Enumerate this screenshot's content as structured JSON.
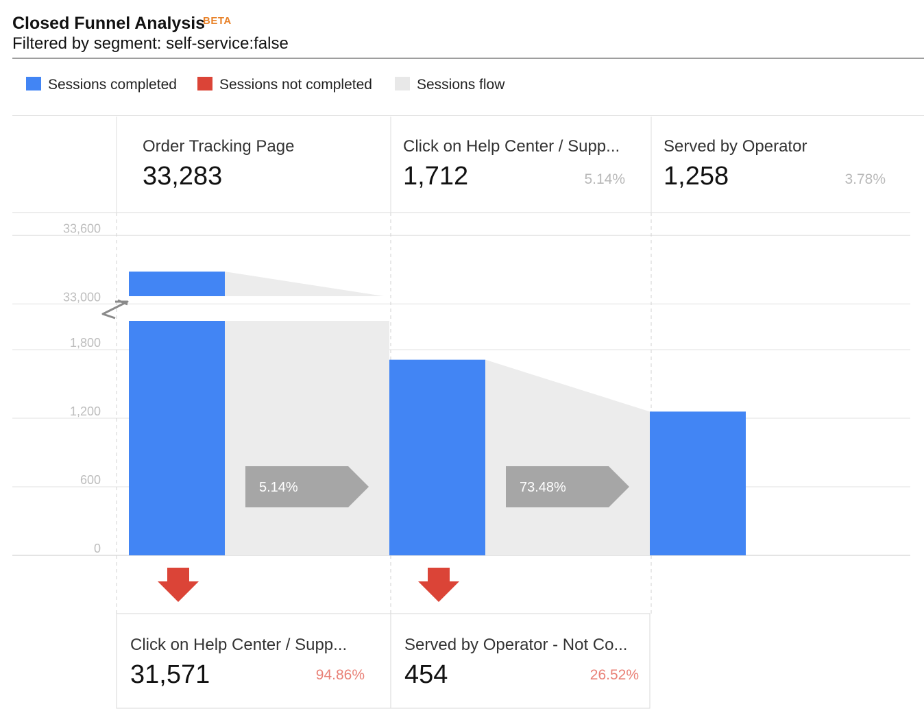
{
  "header": {
    "title": "Closed Funnel Analysis",
    "badge": "BETA",
    "subtitle": "Filtered by segment: self-service:false"
  },
  "legend": [
    {
      "label": "Sessions completed",
      "color": "#4285f4"
    },
    {
      "label": "Sessions not completed",
      "color": "#db4437"
    },
    {
      "label": "Sessions flow",
      "color": "#e8e8e8"
    }
  ],
  "chart_data": {
    "type": "bar",
    "categories": [
      "Order Tracking Page",
      "Click on Help Center / Supp...",
      "Served by Operator"
    ],
    "values": [
      33283,
      1712,
      1258
    ],
    "step_percentages": [
      "",
      "5.14%",
      "3.78%"
    ],
    "value_labels": [
      "33,283",
      "1,712",
      "1,258"
    ],
    "y_axis": {
      "ticks": [
        "0",
        "600",
        "1,200",
        "1,800",
        "33,000",
        "33,600"
      ],
      "lower_segment": [
        0,
        2000
      ],
      "upper_segment": [
        32900,
        33600
      ],
      "broken": true
    },
    "flow_conversion_labels": [
      "5.14%",
      "73.48%"
    ],
    "drop_offs": [
      {
        "name": "Click on Help Center / Supp...",
        "value": 31571,
        "value_label": "31,571",
        "percent": "94.86%"
      },
      {
        "name": "Served by Operator - Not Co...",
        "value": 454,
        "value_label": "454",
        "percent": "26.52%"
      }
    ],
    "colors": {
      "completed": "#4285f4",
      "not_completed": "#db4437",
      "flow": "#ececec",
      "conversion_arrow": "#a6a6a6"
    },
    "grid": true
  }
}
